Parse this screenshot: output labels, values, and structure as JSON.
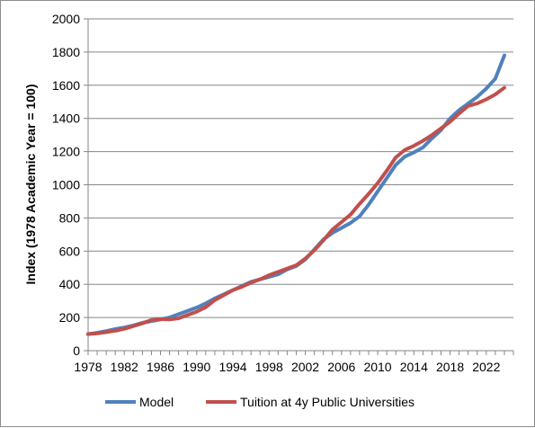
{
  "chart_data": {
    "type": "line",
    "ylabel": "Index (1978 Academic Year = 100)",
    "xlabel": "",
    "xlim": [
      1978,
      2025
    ],
    "ylim": [
      0,
      2000
    ],
    "y_ticks": [
      0,
      200,
      400,
      600,
      800,
      1000,
      1200,
      1400,
      1600,
      1800,
      2000
    ],
    "y_tick_labels": [
      "0",
      "200",
      "400",
      "600",
      "800",
      "1000",
      "1200",
      "1400",
      "1600",
      "1800",
      "2000"
    ],
    "x_ticks": [
      1978,
      1982,
      1986,
      1990,
      1994,
      1998,
      2002,
      2006,
      2010,
      2014,
      2018,
      2022
    ],
    "x_tick_labels": [
      "1978",
      "1982",
      "1986",
      "1990",
      "1994",
      "1998",
      "2002",
      "2006",
      "2010",
      "2014",
      "2018",
      "2022"
    ],
    "grid": "horizontal",
    "legend_position": "bottom",
    "series": [
      {
        "name": "Model",
        "color": "#4f81bd",
        "points": [
          [
            1978,
            100
          ],
          [
            1979,
            108
          ],
          [
            1980,
            118
          ],
          [
            1981,
            130
          ],
          [
            1982,
            140
          ],
          [
            1983,
            152
          ],
          [
            1984,
            168
          ],
          [
            1985,
            178
          ],
          [
            1986,
            188
          ],
          [
            1987,
            200
          ],
          [
            1988,
            220
          ],
          [
            1989,
            240
          ],
          [
            1990,
            260
          ],
          [
            1991,
            285
          ],
          [
            1992,
            315
          ],
          [
            1993,
            340
          ],
          [
            1994,
            365
          ],
          [
            1995,
            390
          ],
          [
            1996,
            415
          ],
          [
            1997,
            430
          ],
          [
            1998,
            445
          ],
          [
            1999,
            460
          ],
          [
            2000,
            490
          ],
          [
            2001,
            510
          ],
          [
            2002,
            550
          ],
          [
            2003,
            610
          ],
          [
            2004,
            670
          ],
          [
            2005,
            710
          ],
          [
            2006,
            740
          ],
          [
            2007,
            770
          ],
          [
            2008,
            810
          ],
          [
            2009,
            880
          ],
          [
            2010,
            960
          ],
          [
            2011,
            1040
          ],
          [
            2012,
            1120
          ],
          [
            2013,
            1170
          ],
          [
            2014,
            1195
          ],
          [
            2015,
            1225
          ],
          [
            2016,
            1280
          ],
          [
            2017,
            1330
          ],
          [
            2018,
            1400
          ],
          [
            2019,
            1450
          ],
          [
            2020,
            1490
          ],
          [
            2021,
            1530
          ],
          [
            2022,
            1580
          ],
          [
            2023,
            1640
          ],
          [
            2024,
            1780
          ]
        ]
      },
      {
        "name": "Tuition at 4y Public Universities",
        "color": "#c0504d",
        "points": [
          [
            1978,
            100
          ],
          [
            1979,
            104
          ],
          [
            1980,
            112
          ],
          [
            1981,
            120
          ],
          [
            1982,
            132
          ],
          [
            1983,
            148
          ],
          [
            1984,
            165
          ],
          [
            1985,
            185
          ],
          [
            1986,
            190
          ],
          [
            1987,
            188
          ],
          [
            1988,
            195
          ],
          [
            1989,
            215
          ],
          [
            1990,
            235
          ],
          [
            1991,
            262
          ],
          [
            1992,
            305
          ],
          [
            1993,
            335
          ],
          [
            1994,
            365
          ],
          [
            1995,
            385
          ],
          [
            1996,
            410
          ],
          [
            1997,
            430
          ],
          [
            1998,
            455
          ],
          [
            1999,
            475
          ],
          [
            2000,
            495
          ],
          [
            2001,
            515
          ],
          [
            2002,
            555
          ],
          [
            2003,
            605
          ],
          [
            2004,
            665
          ],
          [
            2005,
            730
          ],
          [
            2006,
            775
          ],
          [
            2007,
            820
          ],
          [
            2008,
            885
          ],
          [
            2009,
            945
          ],
          [
            2010,
            1010
          ],
          [
            2011,
            1085
          ],
          [
            2012,
            1165
          ],
          [
            2013,
            1210
          ],
          [
            2014,
            1235
          ],
          [
            2015,
            1265
          ],
          [
            2016,
            1300
          ],
          [
            2017,
            1340
          ],
          [
            2018,
            1380
          ],
          [
            2019,
            1430
          ],
          [
            2020,
            1475
          ],
          [
            2021,
            1490
          ],
          [
            2022,
            1515
          ],
          [
            2023,
            1545
          ],
          [
            2024,
            1585
          ]
        ]
      }
    ]
  }
}
